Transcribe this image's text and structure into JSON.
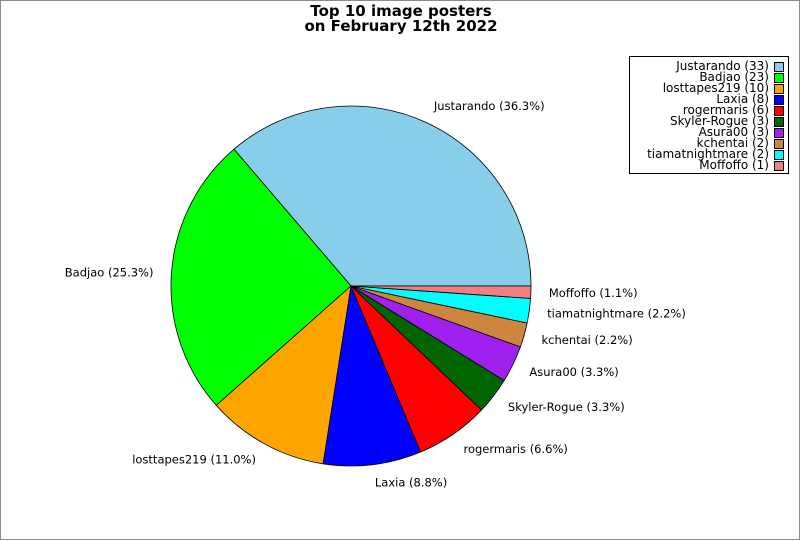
{
  "chart_data": {
    "type": "pie",
    "title_lines": [
      "Top 10 image posters",
      "on February 12th 2022"
    ],
    "slices": [
      {
        "name": "Justarando",
        "value": 33,
        "percent_label": "Justarando (36.3%)",
        "legend_label": "Justarando (33)",
        "color": "#87ceeb"
      },
      {
        "name": "Badjao",
        "value": 23,
        "percent_label": "Badjao (25.3%)",
        "legend_label": "Badjao (23)",
        "color": "#00ff00"
      },
      {
        "name": "losttapes219",
        "value": 10,
        "percent_label": "losttapes219 (11.0%)",
        "legend_label": "losttapes219 (10)",
        "color": "#ffa500"
      },
      {
        "name": "Laxia",
        "value": 8,
        "percent_label": "Laxia (8.8%)",
        "legend_label": "Laxia (8)",
        "color": "#0000ff"
      },
      {
        "name": "rogermaris",
        "value": 6,
        "percent_label": "rogermaris (6.6%)",
        "legend_label": "rogermaris (6)",
        "color": "#ff0000"
      },
      {
        "name": "Skyler-Rogue",
        "value": 3,
        "percent_label": "Skyler-Rogue (3.3%)",
        "legend_label": "Skyler-Rogue (3)",
        "color": "#006400"
      },
      {
        "name": "Asura00",
        "value": 3,
        "percent_label": "Asura00 (3.3%)",
        "legend_label": "Asura00 (3)",
        "color": "#a020f0"
      },
      {
        "name": "kchentai",
        "value": 2,
        "percent_label": "kchentai (2.2%)",
        "legend_label": "kchentai (2)",
        "color": "#cd853f"
      },
      {
        "name": "tiamatnightmare",
        "value": 2,
        "percent_label": "tiamatnightmare (2.2%)",
        "legend_label": "tiamatnightmare (2)",
        "color": "#00ffff"
      },
      {
        "name": "Moffoffo",
        "value": 1,
        "percent_label": "Moffoffo (1.1%)",
        "legend_label": "Moffoffo (1)",
        "color": "#f08080"
      }
    ],
    "start_angle_deg": 0,
    "direction": "counterclockwise",
    "legend_position": "top-right"
  }
}
